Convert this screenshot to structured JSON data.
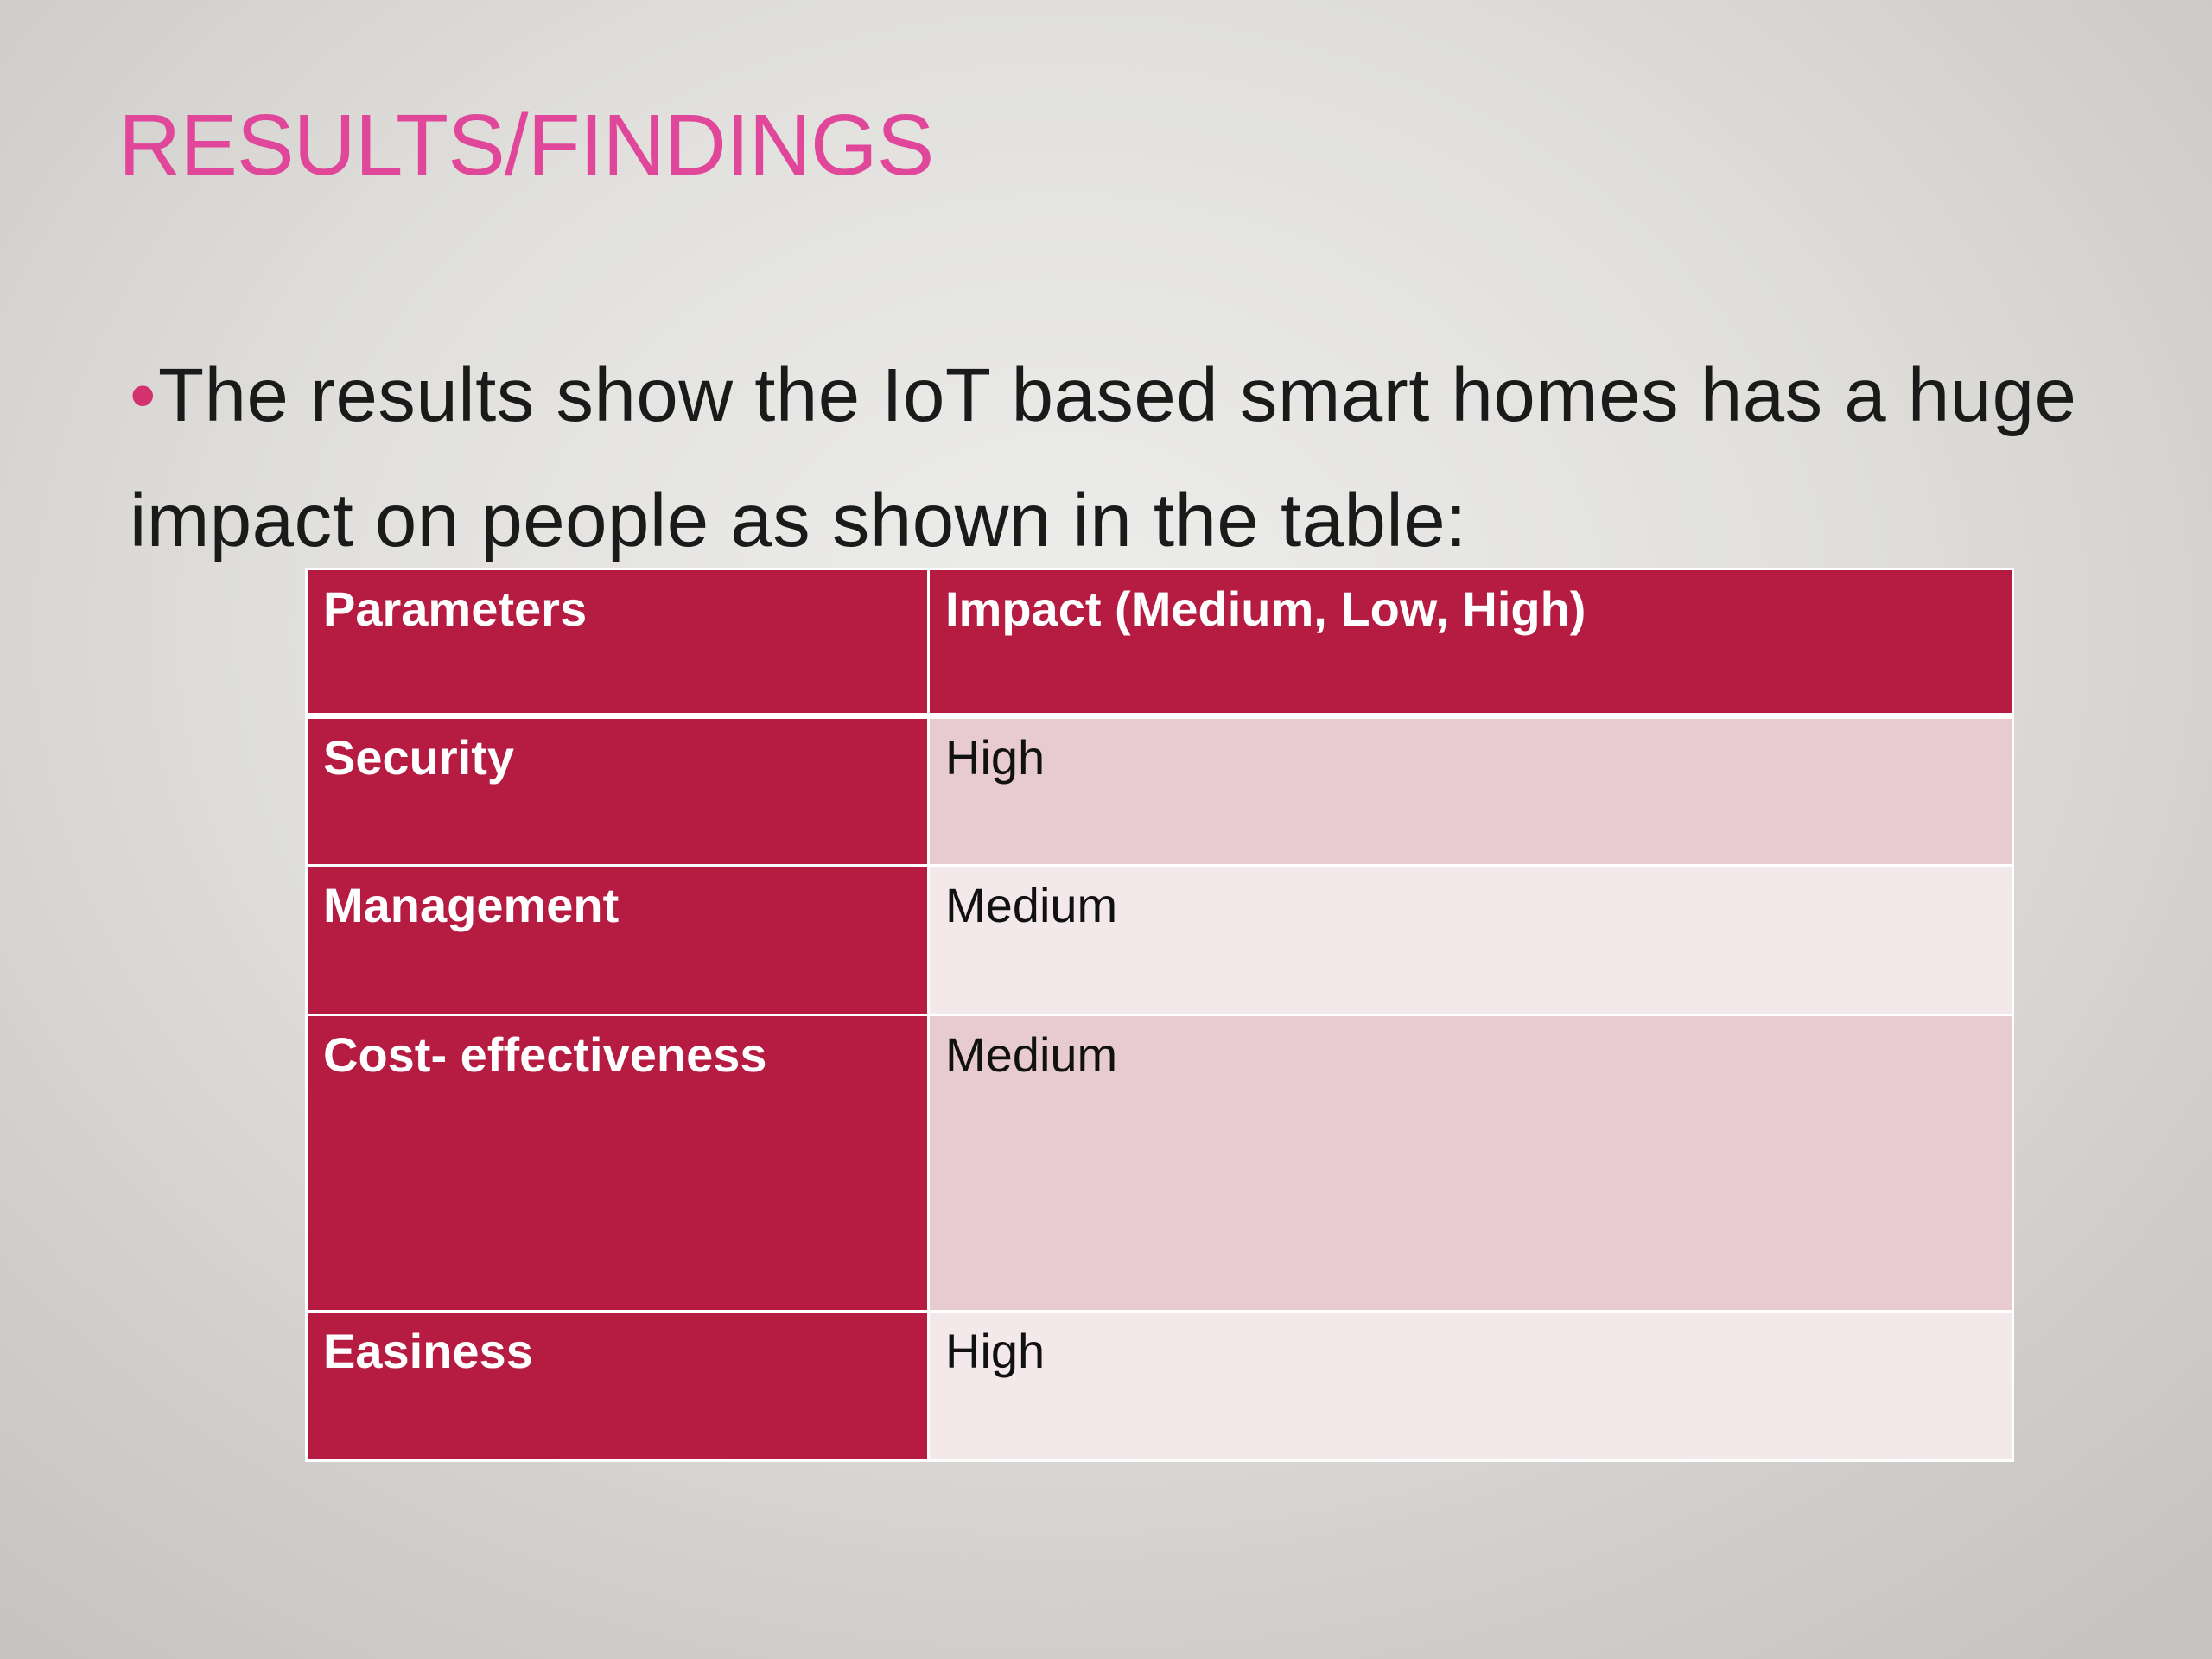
{
  "slide": {
    "title": "RESULTS/FINDINGS",
    "bullet_symbol": "•",
    "body": "The results show the IoT based smart homes has a huge impact on people as shown in the table:"
  },
  "table": {
    "headers": [
      "Parameters",
      "Impact (Medium, Low, High)"
    ],
    "rows": [
      {
        "parameter": "Security",
        "impact": "High"
      },
      {
        "parameter": "Management",
        "impact": "Medium"
      },
      {
        "parameter": "Cost- effectiveness",
        "impact": "Medium"
      },
      {
        "parameter": "Easiness",
        "impact": "High"
      }
    ]
  },
  "colors": {
    "title": "#e0479a",
    "header_fill": "#b61c42",
    "row_band_dark": "#e7cbd0",
    "row_band_light": "#f3e8ea"
  }
}
